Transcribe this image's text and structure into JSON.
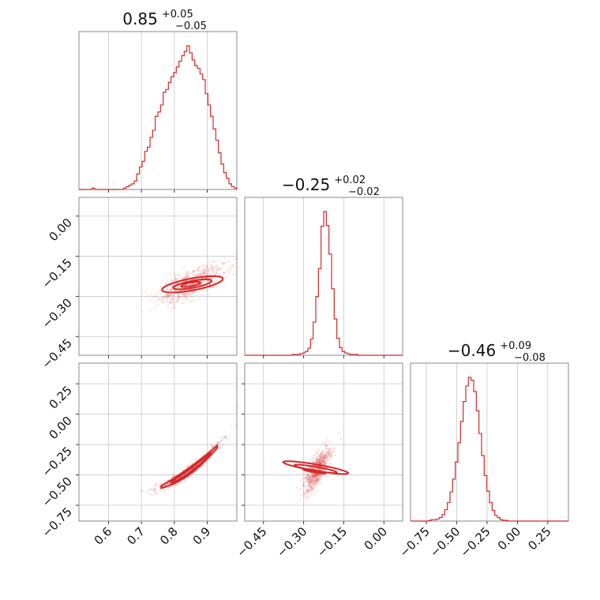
{
  "figure": {
    "type": "corner",
    "color": "#d62728",
    "titles": [
      {
        "value": "0.85",
        "plus": "+0.05",
        "minus": "−0.05"
      },
      {
        "value": "−0.25",
        "plus": "+0.02",
        "minus": "−0.02"
      },
      {
        "value": "−0.46",
        "plus": "+0.09",
        "minus": "−0.08"
      }
    ]
  },
  "chart_data": {
    "type": "corner",
    "grid": true,
    "parameters": [
      {
        "range": [
          0.51,
          0.99
        ],
        "ticks": [
          0.6,
          0.7,
          0.8,
          0.9
        ],
        "tick_labels": [
          "0.6",
          "0.7",
          "0.8",
          "0.9"
        ],
        "median": 0.85,
        "err_plus": 0.05,
        "err_minus": 0.05
      },
      {
        "range": [
          -0.52,
          0.07
        ],
        "ticks": [
          -0.45,
          -0.3,
          -0.15,
          0.0
        ],
        "tick_labels": [
          "−0.45",
          "−0.30",
          "−0.15",
          "0.00"
        ],
        "median": -0.25,
        "err_plus": 0.02,
        "err_minus": 0.02
      },
      {
        "range": [
          -0.88,
          0.42
        ],
        "ticks": [
          -0.75,
          -0.5,
          -0.25,
          0.0,
          0.25
        ],
        "tick_labels": [
          "−0.75",
          "−0.50",
          "−0.25",
          "0.00",
          "0.25"
        ],
        "median": -0.46,
        "err_plus": 0.09,
        "err_minus": 0.08
      }
    ],
    "histograms": [
      {
        "param": 0,
        "counts": [
          0,
          0,
          0,
          0,
          0,
          1,
          0,
          0,
          0,
          0,
          0,
          0,
          0,
          0,
          0,
          0,
          0,
          1,
          2,
          3,
          4,
          6,
          11,
          16,
          20,
          27,
          30,
          37,
          42,
          52,
          55,
          60,
          69,
          71,
          76,
          80,
          83,
          87,
          91,
          95,
          98,
          102,
          97,
          92,
          88,
          86,
          82,
          78,
          68,
          60,
          52,
          43,
          35,
          26,
          18,
          12,
          8,
          4,
          2,
          1
        ]
      },
      {
        "param": 1,
        "counts": [
          0,
          0,
          0,
          0,
          0,
          0,
          0,
          0,
          0,
          0,
          0,
          0,
          0,
          0,
          0,
          0,
          0,
          0,
          1,
          1,
          1,
          2,
          3,
          5,
          9,
          21,
          43,
          76,
          112,
          167,
          186,
          168,
          131,
          86,
          47,
          22,
          10,
          5,
          3,
          2,
          1,
          1,
          1,
          0,
          0,
          0,
          0,
          0,
          0,
          0,
          0,
          0,
          0,
          0,
          0,
          0,
          0,
          0,
          0,
          0
        ]
      },
      {
        "param": 2,
        "counts": [
          0,
          0,
          0,
          0,
          0,
          0,
          0,
          1,
          2,
          2,
          3,
          5,
          9,
          16,
          26,
          41,
          59,
          83,
          110,
          140,
          168,
          190,
          202,
          198,
          182,
          155,
          123,
          92,
          64,
          42,
          26,
          15,
          8,
          5,
          2,
          1,
          1,
          0,
          0,
          0,
          0,
          0,
          0,
          0,
          0,
          0,
          0,
          0,
          0,
          0,
          0,
          0,
          0,
          0,
          0,
          0,
          0,
          0,
          0,
          0
        ]
      }
    ],
    "pairs": [
      {
        "x_param": 0,
        "y_param": 1
      },
      {
        "x_param": 0,
        "y_param": 2
      },
      {
        "x_param": 1,
        "y_param": 2
      }
    ]
  }
}
